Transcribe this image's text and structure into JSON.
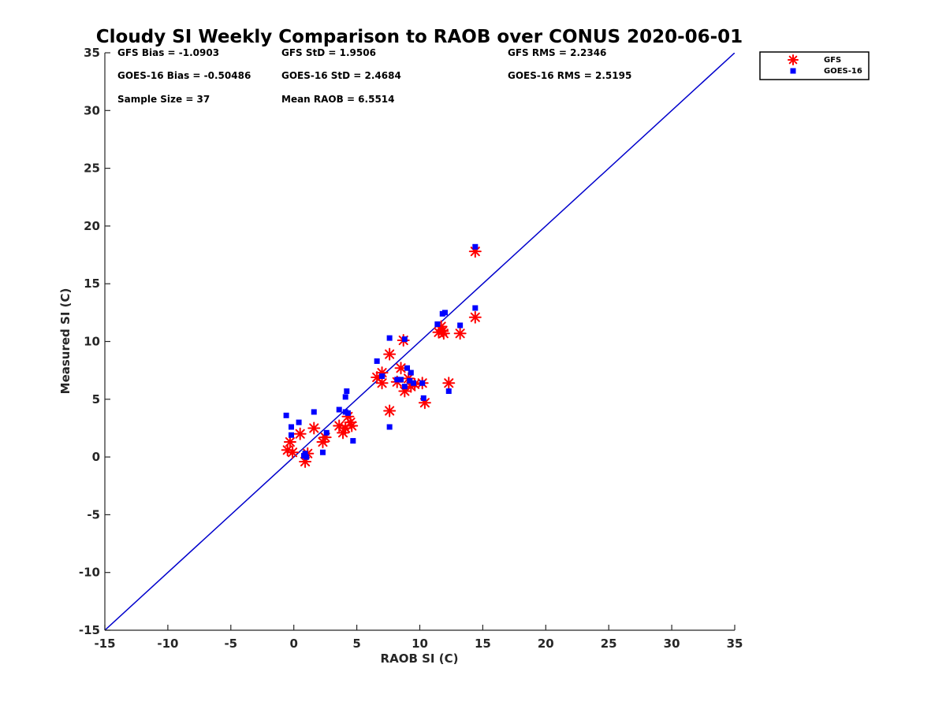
{
  "chart_data": {
    "type": "scatter",
    "title": "Cloudy SI Weekly Comparison to RAOB over CONUS 2020-06-01",
    "xlabel": "RAOB SI (C)",
    "ylabel": "Measured SI (C)",
    "xlim": [
      -15,
      35
    ],
    "ylim": [
      -15,
      35
    ],
    "xticks": [
      "-15",
      "-10",
      "-5",
      "0",
      "5",
      "10",
      "15",
      "20",
      "25",
      "30",
      "35"
    ],
    "yticks": [
      "-15",
      "-10",
      "-5",
      "0",
      "5",
      "10",
      "15",
      "20",
      "25",
      "30",
      "35"
    ],
    "grid": false,
    "legend_position": "outside-top-right",
    "reference_line": {
      "x": [
        -15,
        35
      ],
      "y": [
        -15,
        35
      ],
      "color": "#0000cc"
    },
    "stats": [
      "GFS Bias = -1.0903",
      "GFS StD = 1.9506",
      "GFS RMS = 2.2346",
      "GOES-16 Bias = -0.50486",
      "GOES-16 StD = 2.4684",
      "GOES-16 RMS = 2.5195",
      "Sample Size = 37",
      "Mean RAOB = 6.5514"
    ],
    "series": [
      {
        "name": "GFS",
        "marker": "asterisk",
        "color": "#ff0000",
        "points": [
          [
            -0.5,
            0.6
          ],
          [
            -0.3,
            1.3
          ],
          [
            -0.1,
            0.4
          ],
          [
            0.5,
            2.0
          ],
          [
            0.9,
            -0.4
          ],
          [
            1.1,
            0.3
          ],
          [
            1.6,
            2.5
          ],
          [
            2.3,
            1.3
          ],
          [
            2.5,
            1.7
          ],
          [
            3.6,
            2.7
          ],
          [
            3.9,
            2.1
          ],
          [
            4.1,
            2.5
          ],
          [
            4.3,
            3.5
          ],
          [
            4.5,
            3.0
          ],
          [
            4.6,
            2.7
          ],
          [
            6.6,
            6.9
          ],
          [
            7.0,
            7.3
          ],
          [
            7.0,
            6.4
          ],
          [
            7.6,
            8.9
          ],
          [
            7.6,
            4.0
          ],
          [
            8.2,
            6.5
          ],
          [
            8.5,
            7.7
          ],
          [
            8.7,
            10.1
          ],
          [
            8.8,
            5.7
          ],
          [
            9.1,
            6.8
          ],
          [
            9.3,
            6.1
          ],
          [
            10.2,
            6.4
          ],
          [
            10.4,
            4.7
          ],
          [
            11.5,
            10.8
          ],
          [
            11.7,
            11.3
          ],
          [
            11.9,
            10.7
          ],
          [
            12.3,
            6.4
          ],
          [
            13.2,
            10.7
          ],
          [
            14.4,
            17.8
          ],
          [
            14.4,
            12.1
          ],
          [
            9.6,
            6.3
          ],
          [
            11.8,
            10.9
          ]
        ]
      },
      {
        "name": "GOES-16",
        "marker": "square",
        "color": "#0000ff",
        "points": [
          [
            -0.6,
            3.6
          ],
          [
            -0.2,
            2.6
          ],
          [
            -0.2,
            1.9
          ],
          [
            0.4,
            3.0
          ],
          [
            0.8,
            0.1
          ],
          [
            0.9,
            0.3
          ],
          [
            1.0,
            0.0
          ],
          [
            1.6,
            3.9
          ],
          [
            2.3,
            0.4
          ],
          [
            2.6,
            2.1
          ],
          [
            3.6,
            4.1
          ],
          [
            4.1,
            3.9
          ],
          [
            4.1,
            5.2
          ],
          [
            4.2,
            5.7
          ],
          [
            4.3,
            3.8
          ],
          [
            4.7,
            1.4
          ],
          [
            6.6,
            8.3
          ],
          [
            7.0,
            7.0
          ],
          [
            7.6,
            10.3
          ],
          [
            7.6,
            2.6
          ],
          [
            8.2,
            6.7
          ],
          [
            8.5,
            6.7
          ],
          [
            8.8,
            10.2
          ],
          [
            8.8,
            6.1
          ],
          [
            9.0,
            7.7
          ],
          [
            9.3,
            7.3
          ],
          [
            9.5,
            6.4
          ],
          [
            10.2,
            6.4
          ],
          [
            10.3,
            5.1
          ],
          [
            11.4,
            11.5
          ],
          [
            11.8,
            12.4
          ],
          [
            12.0,
            12.5
          ],
          [
            12.3,
            5.7
          ],
          [
            13.2,
            11.4
          ],
          [
            14.4,
            18.2
          ],
          [
            14.4,
            12.9
          ],
          [
            9.2,
            6.6
          ]
        ]
      }
    ]
  }
}
